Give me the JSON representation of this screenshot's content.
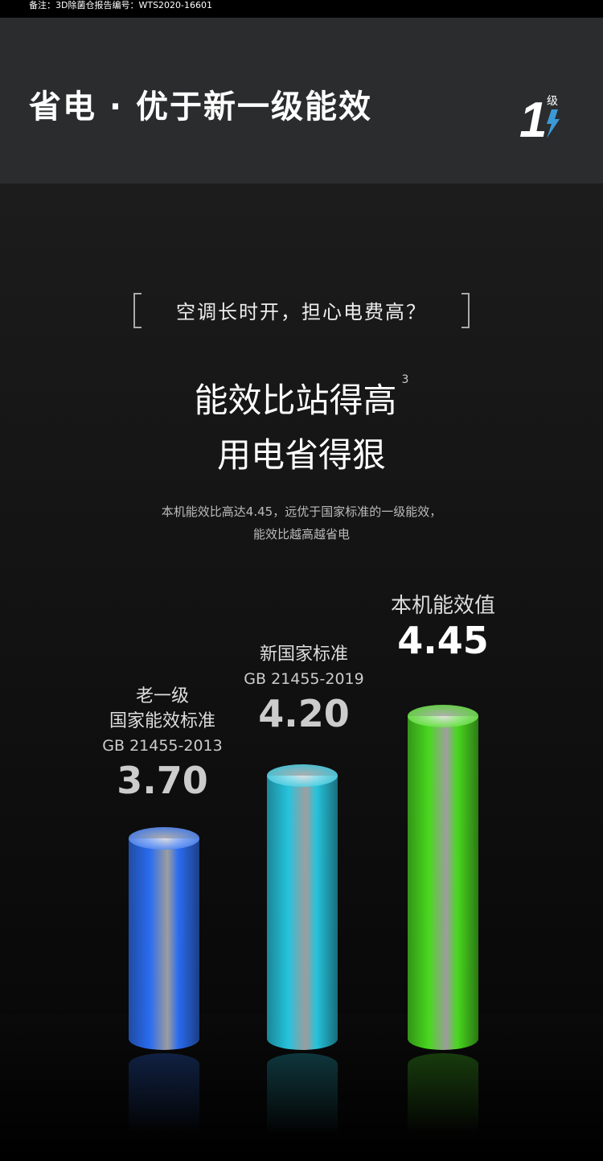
{
  "note": "备注：3D除菌仓报告编号：WTS2020-16601",
  "header": {
    "title": "省电 · 优于新一级能效",
    "badge_number": "1",
    "badge_text": "级"
  },
  "question": "空调长时开，担心电费高？",
  "headline": {
    "line1": "能效比站得高",
    "sup": "3",
    "line2": "用电省得狠"
  },
  "description": {
    "line1": "本机能效比高达4.45，远优于国家标准的一级能效，",
    "line2": "能效比越高越省电"
  },
  "chart_data": {
    "type": "bar",
    "categories": [
      "老一级国家能效标准",
      "新国家标准",
      "本机能效值"
    ],
    "values": [
      3.7,
      4.2,
      4.45
    ],
    "labels": [
      {
        "l1": "老一级",
        "l2": "国家能效标准",
        "gb": "GB 21455-2013",
        "value": "3.70"
      },
      {
        "l1": "新国家标准",
        "gb": "GB 21455-2019",
        "value": "4.20"
      },
      {
        "l1": "本机能效值",
        "value": "4.45"
      }
    ],
    "colors": [
      "#2a6cf0",
      "#25c3dc",
      "#48d81e"
    ]
  }
}
